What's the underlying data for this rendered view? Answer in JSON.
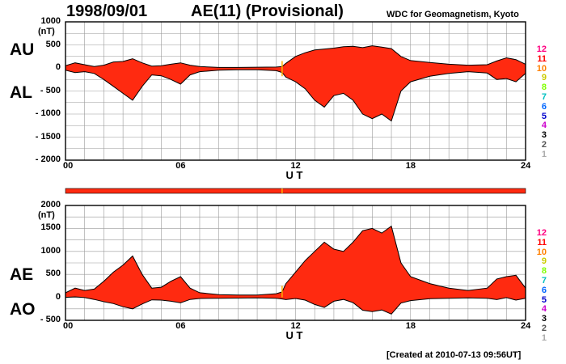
{
  "header": {
    "date": "1998/09/01",
    "title": "AE(11) (Provisional)",
    "source": "WDC for Geomagnetism, Kyoto",
    "created": "[Created at 2010-07-13 09:56UT]"
  },
  "labels": {
    "au": "AU",
    "al": "AL",
    "ae": "AE",
    "ao": "AO",
    "unit": "(nT)",
    "ut": "U T"
  },
  "legend_numbers": [
    "12",
    "11",
    "10",
    "9",
    "8",
    "7",
    "6",
    "5",
    "4",
    "3",
    "2",
    "1"
  ],
  "legend_colors": [
    "#ff0080",
    "#ff0000",
    "#ff8000",
    "#cccc00",
    "#80ff00",
    "#00c0c0",
    "#0066ff",
    "#0000cc",
    "#cc00cc",
    "#000000",
    "#555555",
    "#aaaaaa"
  ],
  "colors": {
    "fill": "#ff2a10",
    "line": "#000000",
    "grid": "#999999",
    "marker": "#ffb000"
  },
  "chart_data": [
    {
      "type": "area",
      "panel": "AU/AL",
      "xlabel": "U T",
      "ylabel_top": "AU",
      "ylabel_bottom": "AL",
      "unit": "(nT)",
      "xlim": [
        0,
        24
      ],
      "ylim": [
        -2000,
        1000
      ],
      "x_ticks": [
        "00",
        "06",
        "12",
        "18",
        "24"
      ],
      "y_ticks": [
        "1000",
        "500",
        "0",
        "- 500",
        "- 1000",
        "- 1500",
        "- 2000"
      ],
      "y_tick_values": [
        1000,
        500,
        0,
        -500,
        -1000,
        -1500,
        -2000
      ],
      "grid": true,
      "series": [
        {
          "name": "AU",
          "x": [
            0,
            0.5,
            1,
            1.5,
            2,
            2.5,
            3,
            3.5,
            4,
            4.5,
            5,
            5.5,
            6,
            6.5,
            7,
            8,
            9,
            10,
            11,
            11.3,
            11.5,
            12,
            12.5,
            13,
            13.5,
            14,
            14.5,
            15,
            15.5,
            16,
            16.5,
            17,
            17.5,
            18,
            19,
            20,
            21,
            22,
            22.5,
            23,
            23.5,
            24
          ],
          "values": [
            50,
            110,
            70,
            30,
            60,
            130,
            140,
            200,
            110,
            40,
            50,
            80,
            110,
            60,
            30,
            10,
            10,
            15,
            20,
            30,
            100,
            250,
            330,
            390,
            410,
            430,
            460,
            470,
            440,
            480,
            450,
            420,
            250,
            160,
            120,
            80,
            60,
            70,
            150,
            220,
            180,
            80
          ]
        },
        {
          "name": "AL",
          "x": [
            0,
            0.5,
            1,
            1.5,
            2,
            2.5,
            3,
            3.5,
            4,
            4.5,
            5,
            5.5,
            6,
            6.5,
            7,
            8,
            9,
            10,
            11,
            11.3,
            11.5,
            12,
            12.5,
            13,
            13.5,
            14,
            14.5,
            15,
            15.5,
            16,
            16.5,
            17,
            17.5,
            18,
            19,
            20,
            21,
            22,
            22.5,
            23,
            23.5,
            24
          ],
          "values": [
            -50,
            -100,
            -80,
            -120,
            -250,
            -400,
            -550,
            -700,
            -400,
            -150,
            -170,
            -250,
            -350,
            -150,
            -80,
            -50,
            -40,
            -40,
            -60,
            -100,
            -200,
            -300,
            -450,
            -700,
            -850,
            -600,
            -550,
            -700,
            -1000,
            -1100,
            -1000,
            -1150,
            -500,
            -300,
            -180,
            -120,
            -80,
            -110,
            -250,
            -230,
            -300,
            -120
          ]
        }
      ]
    },
    {
      "type": "area",
      "panel": "AE/AO",
      "xlabel": "U T",
      "ylabel_top": "AE",
      "ylabel_bottom": "AO",
      "unit": "(nT)",
      "xlim": [
        0,
        24
      ],
      "ylim": [
        -500,
        2000
      ],
      "x_ticks": [
        "00",
        "06",
        "12",
        "18",
        "24"
      ],
      "y_ticks": [
        "2000",
        "1500",
        "1000",
        "500",
        "0",
        "- 500"
      ],
      "y_tick_values": [
        2000,
        1500,
        1000,
        500,
        0,
        -500
      ],
      "grid": true,
      "series": [
        {
          "name": "AE",
          "x": [
            0,
            0.5,
            1,
            1.5,
            2,
            2.5,
            3,
            3.5,
            4,
            4.5,
            5,
            5.5,
            6,
            6.5,
            7,
            8,
            9,
            10,
            11,
            11.3,
            11.5,
            12,
            12.5,
            13,
            13.5,
            14,
            14.5,
            15,
            15.5,
            16,
            16.5,
            17,
            17.5,
            18,
            19,
            20,
            21,
            22,
            22.5,
            23,
            23.5,
            24
          ],
          "values": [
            100,
            200,
            150,
            180,
            350,
            550,
            700,
            900,
            500,
            200,
            220,
            350,
            450,
            200,
            100,
            60,
            50,
            50,
            80,
            120,
            300,
            550,
            800,
            1000,
            1200,
            1050,
            1000,
            1200,
            1450,
            1500,
            1400,
            1550,
            750,
            450,
            300,
            200,
            150,
            200,
            400,
            450,
            480,
            200
          ]
        },
        {
          "name": "AO",
          "x": [
            0,
            0.5,
            1,
            1.5,
            2,
            2.5,
            3,
            3.5,
            4,
            4.5,
            5,
            5.5,
            6,
            6.5,
            7,
            8,
            9,
            10,
            11,
            11.3,
            11.5,
            12,
            12.5,
            13,
            13.5,
            14,
            14.5,
            15,
            15.5,
            16,
            16.5,
            17,
            17.5,
            18,
            19,
            20,
            21,
            22,
            22.5,
            23,
            23.5,
            24
          ],
          "values": [
            0,
            10,
            -5,
            -45,
            -95,
            -135,
            -205,
            -250,
            -145,
            -55,
            -60,
            -85,
            -120,
            -45,
            -25,
            -20,
            -15,
            -12,
            -20,
            -35,
            -50,
            -25,
            -60,
            -155,
            -220,
            -85,
            -45,
            -115,
            -280,
            -310,
            -275,
            -365,
            -125,
            -70,
            -30,
            -20,
            -10,
            -20,
            -50,
            -5,
            -60,
            -20
          ]
        }
      ]
    }
  ]
}
